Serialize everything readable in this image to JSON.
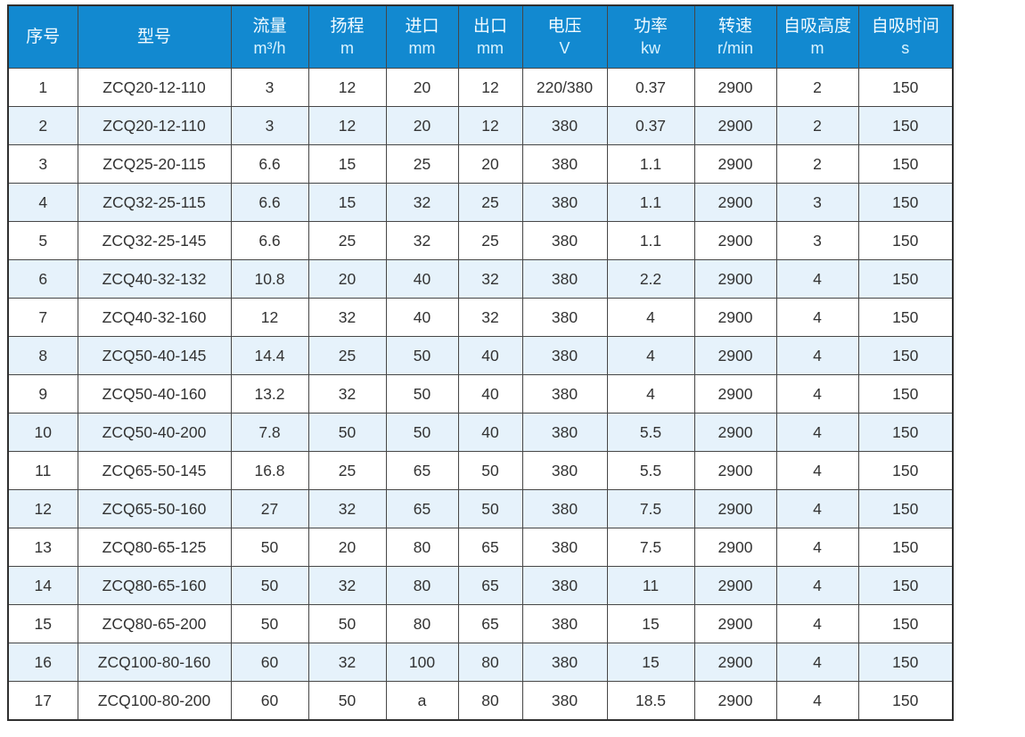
{
  "table": {
    "name": "pump-specification-table",
    "colors": {
      "header_bg": "#1289d0",
      "header_text": "#f2fbff",
      "stripe_bg": "#e6f2fb",
      "row_bg": "#ffffff",
      "border": "#464646",
      "cell_text": "#333333"
    },
    "columns": [
      {
        "label": "序号",
        "unit": "",
        "width": 78
      },
      {
        "label": "型号",
        "unit": "",
        "width": 172
      },
      {
        "label": "流量",
        "unit": "m³/h",
        "width": 87
      },
      {
        "label": "扬程",
        "unit": "m",
        "width": 87
      },
      {
        "label": "进口",
        "unit": "mm",
        "width": 81
      },
      {
        "label": "出口",
        "unit": "mm",
        "width": 72
      },
      {
        "label": "电压",
        "unit": "V",
        "width": 95
      },
      {
        "label": "功率",
        "unit": "kw",
        "width": 98
      },
      {
        "label": "转速",
        "unit": "r/min",
        "width": 92
      },
      {
        "label": "自吸高度",
        "unit": "m",
        "width": 92
      },
      {
        "label": "自吸时间",
        "unit": "s",
        "width": 106
      }
    ],
    "rows": [
      [
        "1",
        "ZCQ20-12-110",
        "3",
        "12",
        "20",
        "12",
        "220/380",
        "0.37",
        "2900",
        "2",
        "150"
      ],
      [
        "2",
        "ZCQ20-12-110",
        "3",
        "12",
        "20",
        "12",
        "380",
        "0.37",
        "2900",
        "2",
        "150"
      ],
      [
        "3",
        "ZCQ25-20-115",
        "6.6",
        "15",
        "25",
        "20",
        "380",
        "1.1",
        "2900",
        "2",
        "150"
      ],
      [
        "4",
        "ZCQ32-25-115",
        "6.6",
        "15",
        "32",
        "25",
        "380",
        "1.1",
        "2900",
        "3",
        "150"
      ],
      [
        "5",
        "ZCQ32-25-145",
        "6.6",
        "25",
        "32",
        "25",
        "380",
        "1.1",
        "2900",
        "3",
        "150"
      ],
      [
        "6",
        "ZCQ40-32-132",
        "10.8",
        "20",
        "40",
        "32",
        "380",
        "2.2",
        "2900",
        "4",
        "150"
      ],
      [
        "7",
        "ZCQ40-32-160",
        "12",
        "32",
        "40",
        "32",
        "380",
        "4",
        "2900",
        "4",
        "150"
      ],
      [
        "8",
        "ZCQ50-40-145",
        "14.4",
        "25",
        "50",
        "40",
        "380",
        "4",
        "2900",
        "4",
        "150"
      ],
      [
        "9",
        "ZCQ50-40-160",
        "13.2",
        "32",
        "50",
        "40",
        "380",
        "4",
        "2900",
        "4",
        "150"
      ],
      [
        "10",
        "ZCQ50-40-200",
        "7.8",
        "50",
        "50",
        "40",
        "380",
        "5.5",
        "2900",
        "4",
        "150"
      ],
      [
        "11",
        "ZCQ65-50-145",
        "16.8",
        "25",
        "65",
        "50",
        "380",
        "5.5",
        "2900",
        "4",
        "150"
      ],
      [
        "12",
        "ZCQ65-50-160",
        "27",
        "32",
        "65",
        "50",
        "380",
        "7.5",
        "2900",
        "4",
        "150"
      ],
      [
        "13",
        "ZCQ80-65-125",
        "50",
        "20",
        "80",
        "65",
        "380",
        "7.5",
        "2900",
        "4",
        "150"
      ],
      [
        "14",
        "ZCQ80-65-160",
        "50",
        "32",
        "80",
        "65",
        "380",
        "11",
        "2900",
        "4",
        "150"
      ],
      [
        "15",
        "ZCQ80-65-200",
        "50",
        "50",
        "80",
        "65",
        "380",
        "15",
        "2900",
        "4",
        "150"
      ],
      [
        "16",
        "ZCQ100-80-160",
        "60",
        "32",
        "100",
        "80",
        "380",
        "15",
        "2900",
        "4",
        "150"
      ],
      [
        "17",
        "ZCQ100-80-200",
        "60",
        "50",
        "a",
        "80",
        "380",
        "18.5",
        "2900",
        "4",
        "150"
      ]
    ]
  }
}
